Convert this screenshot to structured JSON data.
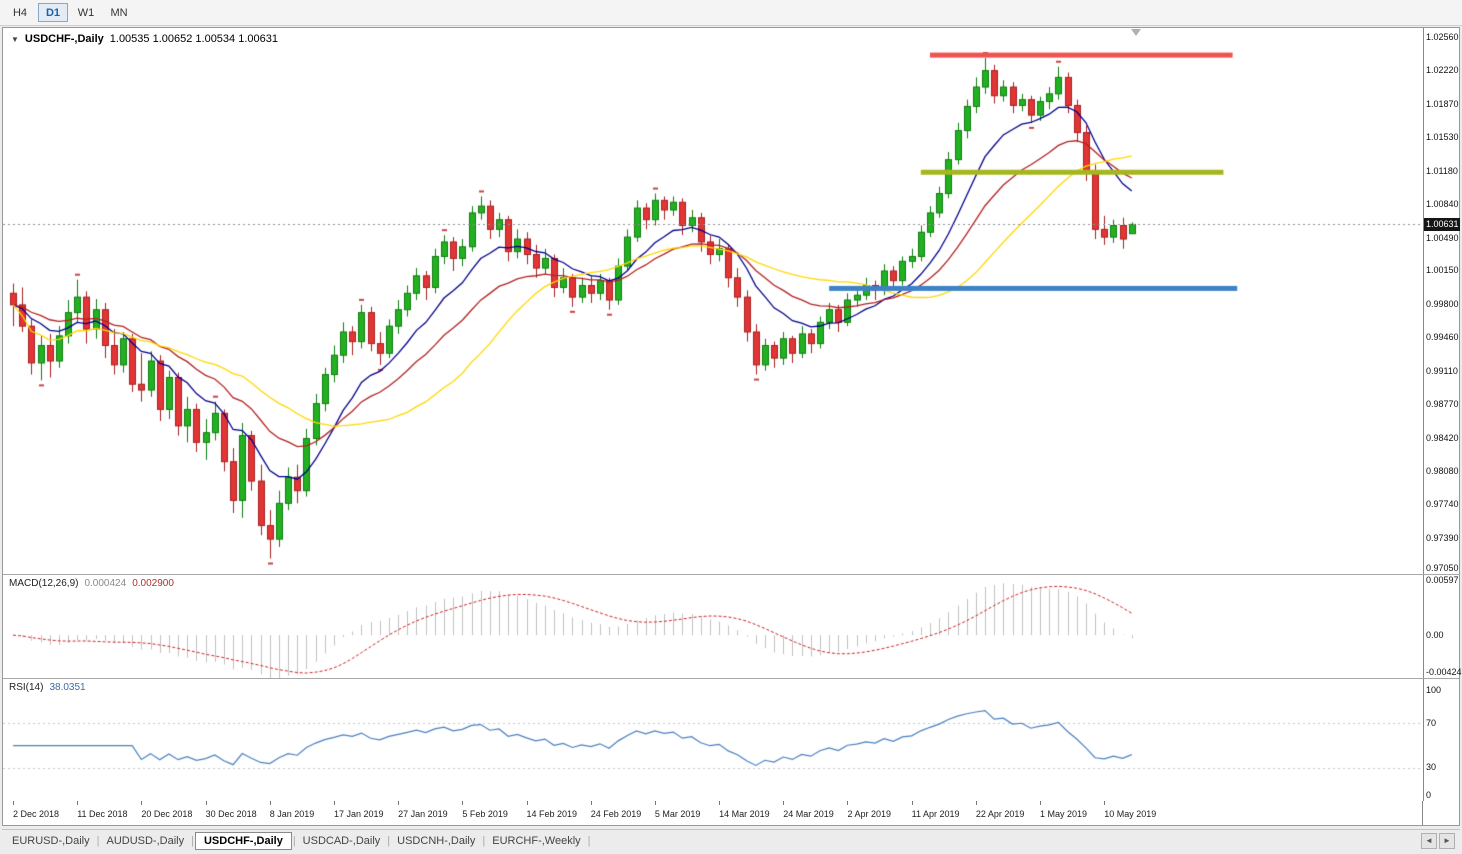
{
  "icons": {
    "collapse": "▼",
    "tab_scroll_left": "◄",
    "tab_scroll_right": "►"
  },
  "toolbar": {
    "timeframes": [
      {
        "label": "H4",
        "active": false
      },
      {
        "label": "D1",
        "active": true
      },
      {
        "label": "W1",
        "active": false
      },
      {
        "label": "MN",
        "active": false
      }
    ]
  },
  "chart": {
    "title": {
      "symbol": "USDCHF-,Daily",
      "ohlc": "1.00535 1.00652 1.00534 1.00631"
    },
    "current_price": "1.00631",
    "price_axis_labels": [
      "1.02560",
      "1.02220",
      "1.01870",
      "1.01530",
      "1.01180",
      "1.00840",
      "1.00490",
      "1.00150",
      "0.99800",
      "0.99460",
      "0.99110",
      "0.98770",
      "0.98420",
      "0.98080",
      "0.97740",
      "0.97390",
      "0.97050"
    ],
    "price_range": {
      "min": 0.9702,
      "max": 1.0266
    },
    "colors": {
      "up_fill": "#23b123",
      "up_border": "#0e7d0e",
      "down_fill": "#e23535",
      "down_border": "#a81f1f",
      "bid_line": "#909090",
      "macd_hist": "#c0c0c0",
      "macd_signal": "#cc2222",
      "rsi_line": "#4a7fc1",
      "rsi_level": "#c8c8c8",
      "fractal": "#c84444"
    },
    "moving_averages": [
      {
        "period": 10,
        "method": "ema",
        "color": "#00008b"
      },
      {
        "period": 20,
        "method": "ema",
        "color": "#b22222"
      },
      {
        "period": 26,
        "method": "sma",
        "color": "#ffd700"
      }
    ],
    "objects": {
      "hlines": [
        {
          "name": "resistance-line",
          "price": 1.0238,
          "from_index": 100,
          "to_index": 133,
          "color": "#ef5350",
          "width": 5
        },
        {
          "name": "broken-support-line",
          "price": 1.0117,
          "from_index": 99,
          "to_index": 132,
          "color": "#a5b61e",
          "width": 5
        },
        {
          "name": "support-line",
          "price": 0.9997,
          "from_index": 89,
          "to_index": 133.5,
          "color": "#3e82c6",
          "width": 5
        }
      ]
    }
  },
  "macd": {
    "label": "MACD(12,26,9)",
    "value_main": "0.000424",
    "value_signal": "0.002900",
    "axis_labels": [
      "0.00597",
      "0.00",
      "-0.00424"
    ],
    "range": {
      "min": -0.0047,
      "max": 0.0066
    },
    "params": {
      "fast": 12,
      "slow": 26,
      "signal": 9
    }
  },
  "rsi": {
    "label": "RSI(14)",
    "value": "38.0351",
    "axis_labels": [
      "100",
      "70",
      "30",
      "0"
    ],
    "levels": [
      70,
      30
    ],
    "period": 14,
    "range": {
      "min": 0,
      "max": 110
    }
  },
  "tabs": {
    "items": [
      {
        "label": "EURUSD-,Daily",
        "active": false
      },
      {
        "label": "AUDUSD-,Daily",
        "active": false
      },
      {
        "label": "USDCHF-,Daily",
        "active": true
      },
      {
        "label": "USDCAD-,Daily",
        "active": false
      },
      {
        "label": "USDCNH-,Daily",
        "active": false
      },
      {
        "label": "EURCHF-,Weekly",
        "active": false
      }
    ]
  },
  "chart_data": {
    "type": "candlestick",
    "symbol": "USDCHF",
    "timeframe": "Daily",
    "x_tick_labels": [
      "2 Dec 2018",
      "11 Dec 2018",
      "20 Dec 2018",
      "30 Dec 2018",
      "8 Jan 2019",
      "17 Jan 2019",
      "27 Jan 2019",
      "5 Feb 2019",
      "14 Feb 2019",
      "24 Feb 2019",
      "5 Mar 2019",
      "14 Mar 2019",
      "24 Mar 2019",
      "2 Apr 2019",
      "11 Apr 2019",
      "22 Apr 2019",
      "1 May 2019",
      "10 May 2019"
    ],
    "x_tick_indices": [
      0,
      7,
      14,
      21,
      28,
      35,
      42,
      49,
      56,
      63,
      70,
      77,
      84,
      91,
      98,
      105,
      112,
      119
    ],
    "ohlc": [
      [
        0.9992,
        1.0002,
        0.9958,
        0.998
      ],
      [
        0.998,
        0.9998,
        0.9952,
        0.9958
      ],
      [
        0.9958,
        0.9965,
        0.9908,
        0.992
      ],
      [
        0.992,
        0.9948,
        0.9902,
        0.9938
      ],
      [
        0.9938,
        0.995,
        0.9905,
        0.9922
      ],
      [
        0.9922,
        0.9958,
        0.9915,
        0.9948
      ],
      [
        0.9948,
        0.9985,
        0.994,
        0.9972
      ],
      [
        0.9972,
        1.0006,
        0.9962,
        0.9988
      ],
      [
        0.9988,
        0.9994,
        0.994,
        0.9955
      ],
      [
        0.9955,
        0.9986,
        0.9945,
        0.9975
      ],
      [
        0.9975,
        0.9982,
        0.9925,
        0.9938
      ],
      [
        0.9938,
        0.9955,
        0.9908,
        0.9918
      ],
      [
        0.9918,
        0.9952,
        0.991,
        0.9945
      ],
      [
        0.9945,
        0.995,
        0.989,
        0.9898
      ],
      [
        0.9898,
        0.993,
        0.988,
        0.9892
      ],
      [
        0.9892,
        0.9932,
        0.9885,
        0.9922
      ],
      [
        0.9922,
        0.9928,
        0.986,
        0.9872
      ],
      [
        0.9872,
        0.9912,
        0.9862,
        0.9905
      ],
      [
        0.9905,
        0.991,
        0.9845,
        0.9855
      ],
      [
        0.9855,
        0.9885,
        0.9838,
        0.9872
      ],
      [
        0.9872,
        0.9878,
        0.9828,
        0.9838
      ],
      [
        0.9838,
        0.9862,
        0.982,
        0.9848
      ],
      [
        0.9848,
        0.988,
        0.984,
        0.9868
      ],
      [
        0.9868,
        0.9872,
        0.9808,
        0.9818
      ],
      [
        0.9818,
        0.9832,
        0.9765,
        0.9778
      ],
      [
        0.9778,
        0.9858,
        0.976,
        0.9845
      ],
      [
        0.9845,
        0.985,
        0.9788,
        0.9798
      ],
      [
        0.9798,
        0.9815,
        0.9742,
        0.9752
      ],
      [
        0.9752,
        0.9768,
        0.9718,
        0.9738
      ],
      [
        0.9738,
        0.9788,
        0.973,
        0.9775
      ],
      [
        0.9775,
        0.9812,
        0.9768,
        0.9802
      ],
      [
        0.9802,
        0.9815,
        0.9775,
        0.9788
      ],
      [
        0.9788,
        0.9852,
        0.9782,
        0.9842
      ],
      [
        0.9842,
        0.9888,
        0.9835,
        0.9878
      ],
      [
        0.9878,
        0.9915,
        0.987,
        0.9908
      ],
      [
        0.9908,
        0.9938,
        0.99,
        0.9928
      ],
      [
        0.9928,
        0.9962,
        0.992,
        0.9952
      ],
      [
        0.9952,
        0.9958,
        0.9928,
        0.9942
      ],
      [
        0.9942,
        0.998,
        0.9935,
        0.9972
      ],
      [
        0.9972,
        0.9978,
        0.9932,
        0.994
      ],
      [
        0.994,
        0.9952,
        0.9918,
        0.993
      ],
      [
        0.993,
        0.9965,
        0.9925,
        0.9958
      ],
      [
        0.9958,
        0.9985,
        0.995,
        0.9975
      ],
      [
        0.9975,
        1.0,
        0.9968,
        0.9992
      ],
      [
        0.9992,
        1.0018,
        0.9985,
        1.001
      ],
      [
        1.001,
        1.0015,
        0.9985,
        0.9998
      ],
      [
        0.9998,
        1.0038,
        0.9992,
        1.003
      ],
      [
        1.003,
        1.0052,
        1.0022,
        1.0045
      ],
      [
        1.0045,
        1.005,
        1.0015,
        1.0028
      ],
      [
        1.0028,
        1.0048,
        1.002,
        1.004
      ],
      [
        1.004,
        1.0082,
        1.0035,
        1.0075
      ],
      [
        1.0075,
        1.0092,
        1.0068,
        1.0082
      ],
      [
        1.0082,
        1.0088,
        1.0048,
        1.0058
      ],
      [
        1.0058,
        1.0075,
        1.005,
        1.0068
      ],
      [
        1.0068,
        1.0072,
        1.0025,
        1.0035
      ],
      [
        1.0035,
        1.0058,
        1.0028,
        1.0048
      ],
      [
        1.0048,
        1.0055,
        1.0022,
        1.0032
      ],
      [
        1.0032,
        1.0042,
        1.0008,
        1.0018
      ],
      [
        1.0018,
        1.0038,
        1.0012,
        1.0028
      ],
      [
        1.0028,
        1.0032,
        0.9988,
        0.9998
      ],
      [
        0.9998,
        1.0018,
        0.9992,
        1.0008
      ],
      [
        1.0008,
        1.0012,
        0.9978,
        0.9988
      ],
      [
        0.9988,
        1.0008,
        0.9982,
        1.0
      ],
      [
        1.0,
        1.001,
        0.9982,
        0.9992
      ],
      [
        0.9992,
        1.0012,
        0.9985,
        1.0005
      ],
      [
        1.0005,
        1.0008,
        0.9975,
        0.9985
      ],
      [
        0.9985,
        1.0028,
        0.998,
        1.002
      ],
      [
        1.002,
        1.0058,
        1.0015,
        1.005
      ],
      [
        1.005,
        1.0088,
        1.0045,
        1.008
      ],
      [
        1.008,
        1.0085,
        1.0058,
        1.0068
      ],
      [
        1.0068,
        1.0095,
        1.0062,
        1.0088
      ],
      [
        1.0088,
        1.0092,
        1.0068,
        1.0078
      ],
      [
        1.0078,
        1.0092,
        1.0072,
        1.0086
      ],
      [
        1.0086,
        1.009,
        1.0052,
        1.0062
      ],
      [
        1.0062,
        1.0078,
        1.0055,
        1.007
      ],
      [
        1.007,
        1.0075,
        1.0035,
        1.0045
      ],
      [
        1.0045,
        1.0052,
        1.0022,
        1.0032
      ],
      [
        1.0032,
        1.0048,
        1.0025,
        1.0038
      ],
      [
        1.0038,
        1.0042,
        0.9998,
        1.0008
      ],
      [
        1.0008,
        1.0018,
        0.9978,
        0.9988
      ],
      [
        0.9988,
        0.9995,
        0.9942,
        0.9952
      ],
      [
        0.9952,
        0.996,
        0.9908,
        0.9918
      ],
      [
        0.9918,
        0.9945,
        0.9912,
        0.9938
      ],
      [
        0.9938,
        0.9942,
        0.9915,
        0.9925
      ],
      [
        0.9925,
        0.9952,
        0.9918,
        0.9945
      ],
      [
        0.9945,
        0.9948,
        0.992,
        0.993
      ],
      [
        0.993,
        0.9958,
        0.9925,
        0.995
      ],
      [
        0.995,
        0.9955,
        0.993,
        0.994
      ],
      [
        0.994,
        0.9968,
        0.9935,
        0.9962
      ],
      [
        0.9962,
        0.9982,
        0.9955,
        0.9975
      ],
      [
        0.9975,
        0.998,
        0.9952,
        0.9962
      ],
      [
        0.9962,
        0.9992,
        0.9958,
        0.9985
      ],
      [
        0.9985,
        0.9995,
        0.9978,
        0.999
      ],
      [
        0.999,
        1.0008,
        0.9985,
        1.0
      ],
      [
        1.0,
        1.0005,
        0.9985,
        0.9995
      ],
      [
        0.9995,
        1.0022,
        0.999,
        1.0015
      ],
      [
        1.0015,
        1.002,
        0.9998,
        1.0005
      ],
      [
        1.0005,
        1.003,
        1.0,
        1.0025
      ],
      [
        1.0025,
        1.0038,
        1.0018,
        1.003
      ],
      [
        1.003,
        1.0062,
        1.0025,
        1.0055
      ],
      [
        1.0055,
        1.0082,
        1.005,
        1.0075
      ],
      [
        1.0075,
        1.0102,
        1.007,
        1.0095
      ],
      [
        1.0095,
        1.0138,
        1.009,
        1.013
      ],
      [
        1.013,
        1.0168,
        1.0125,
        1.016
      ],
      [
        1.016,
        1.0192,
        1.0152,
        1.0185
      ],
      [
        1.0185,
        1.0215,
        1.0178,
        1.0205
      ],
      [
        1.0205,
        1.0235,
        1.0198,
        1.0222
      ],
      [
        1.0222,
        1.0228,
        1.0188,
        1.0196
      ],
      [
        1.0196,
        1.0212,
        1.019,
        1.0205
      ],
      [
        1.0205,
        1.021,
        1.0178,
        1.0186
      ],
      [
        1.0186,
        1.0198,
        1.018,
        1.0192
      ],
      [
        1.0192,
        1.0196,
        1.0168,
        1.0176
      ],
      [
        1.0176,
        1.0195,
        1.017,
        1.019
      ],
      [
        1.019,
        1.0205,
        1.0182,
        1.0198
      ],
      [
        1.0198,
        1.0226,
        1.0192,
        1.0215
      ],
      [
        1.0215,
        1.022,
        1.0178,
        1.0186
      ],
      [
        1.0186,
        1.0192,
        1.0148,
        1.0158
      ],
      [
        1.0158,
        1.0165,
        1.0108,
        1.0118
      ],
      [
        1.0118,
        1.0125,
        1.0048,
        1.0058
      ],
      [
        1.0058,
        1.0072,
        1.0042,
        1.005
      ],
      [
        1.005,
        1.0068,
        1.0044,
        1.0062
      ],
      [
        1.0062,
        1.007,
        1.0038,
        1.0048
      ],
      [
        1.00535,
        1.00652,
        1.00534,
        1.00631
      ]
    ]
  }
}
